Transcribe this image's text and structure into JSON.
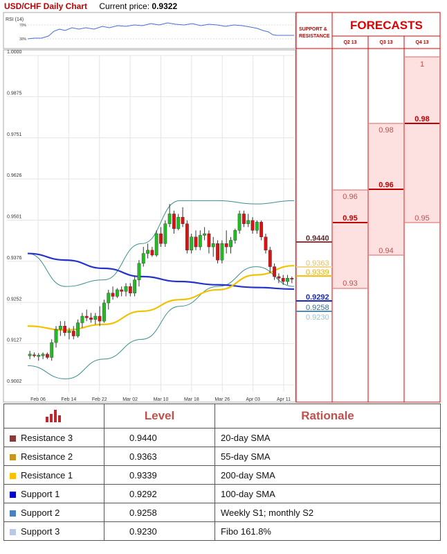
{
  "header": {
    "pair_title": "USD/CHF Daily Chart",
    "price_label": "Current price:",
    "price_value": "0.9322"
  },
  "rsi": {
    "label": "RSI (14)",
    "level_hi": "70%",
    "level_lo": "30%"
  },
  "forecasts": {
    "title": "FORECASTS",
    "sr_header": "SUPPORT & RESISTANCE",
    "columns": [
      "Q2 13",
      "Q3 13",
      "Q4 13"
    ],
    "q2": {
      "range_hi": "0.96",
      "point": "0.95",
      "range_lo": "0.93"
    },
    "q3": {
      "range_hi": "0.98",
      "point": "0.96",
      "range_lo": "0.94"
    },
    "q4": {
      "range_hi": "1",
      "point": "0.98",
      "range_lo": "0.95"
    },
    "sr_labels": {
      "r3": "0.9440",
      "r2": "0.9363",
      "r1": "0.9339",
      "s1": "0.9292",
      "s2": "0.9258",
      "s3": "0.9230"
    }
  },
  "chart_data": {
    "type": "candlestick",
    "title": "USD/CHF Daily Chart",
    "x_tick_labels": [
      "Feb 06",
      "Feb 14",
      "Feb 22",
      "Mar 02",
      "Mar 10",
      "Mar 18",
      "Mar 26",
      "Apr 03",
      "Apr 11"
    ],
    "y_tick_labels": [
      "1.0000",
      "0.9875",
      "0.9751",
      "0.9626",
      "0.9501",
      "0.9376",
      "0.9252",
      "0.9127",
      "0.9002"
    ],
    "ylim": [
      0.9002,
      1.0
    ],
    "grid": true,
    "candles": [
      [
        0.909,
        0.9105,
        0.908,
        0.9095
      ],
      [
        0.9093,
        0.91,
        0.9085,
        0.909
      ],
      [
        0.9088,
        0.9098,
        0.9075,
        0.9092
      ],
      [
        0.909,
        0.91,
        0.908,
        0.9095
      ],
      [
        0.9095,
        0.91,
        0.908,
        0.9085
      ],
      [
        0.9085,
        0.914,
        0.9075,
        0.913
      ],
      [
        0.913,
        0.918,
        0.9115,
        0.917
      ],
      [
        0.917,
        0.9195,
        0.915,
        0.918
      ],
      [
        0.918,
        0.9195,
        0.915,
        0.916
      ],
      [
        0.916,
        0.9175,
        0.914,
        0.9165
      ],
      [
        0.9165,
        0.918,
        0.914,
        0.915
      ],
      [
        0.915,
        0.92,
        0.9145,
        0.919
      ],
      [
        0.919,
        0.922,
        0.9175,
        0.921
      ],
      [
        0.921,
        0.923,
        0.9195,
        0.9205
      ],
      [
        0.9205,
        0.922,
        0.919,
        0.92
      ],
      [
        0.92,
        0.922,
        0.9185,
        0.921
      ],
      [
        0.921,
        0.924,
        0.918,
        0.9195
      ],
      [
        0.9195,
        0.926,
        0.919,
        0.925
      ],
      [
        0.925,
        0.929,
        0.923,
        0.928
      ],
      [
        0.928,
        0.93,
        0.926,
        0.927
      ],
      [
        0.927,
        0.9295,
        0.9265,
        0.929
      ],
      [
        0.929,
        0.93,
        0.927,
        0.9285
      ],
      [
        0.9285,
        0.931,
        0.927,
        0.93
      ],
      [
        0.93,
        0.931,
        0.927,
        0.928
      ],
      [
        0.928,
        0.933,
        0.927,
        0.932
      ],
      [
        0.932,
        0.938,
        0.93,
        0.937
      ],
      [
        0.937,
        0.942,
        0.936,
        0.94
      ],
      [
        0.94,
        0.943,
        0.9385,
        0.941
      ],
      [
        0.941,
        0.942,
        0.939,
        0.9395
      ],
      [
        0.9395,
        0.947,
        0.939,
        0.946
      ],
      [
        0.946,
        0.948,
        0.942,
        0.943
      ],
      [
        0.943,
        0.95,
        0.942,
        0.949
      ],
      [
        0.949,
        0.955,
        0.948,
        0.952
      ],
      [
        0.952,
        0.953,
        0.946,
        0.9475
      ],
      [
        0.9475,
        0.952,
        0.947,
        0.951
      ],
      [
        0.951,
        0.954,
        0.948,
        0.949
      ],
      [
        0.949,
        0.95,
        0.94,
        0.941
      ],
      [
        0.941,
        0.946,
        0.94,
        0.945
      ],
      [
        0.945,
        0.947,
        0.941,
        0.942
      ],
      [
        0.942,
        0.947,
        0.941,
        0.9455
      ],
      [
        0.9455,
        0.948,
        0.944,
        0.946
      ],
      [
        0.946,
        0.947,
        0.94,
        0.942
      ],
      [
        0.942,
        0.945,
        0.939,
        0.943
      ],
      [
        0.943,
        0.944,
        0.937,
        0.938
      ],
      [
        0.938,
        0.944,
        0.937,
        0.943
      ],
      [
        0.943,
        0.947,
        0.94,
        0.942
      ],
      [
        0.942,
        0.945,
        0.94,
        0.944
      ],
      [
        0.944,
        0.9475,
        0.943,
        0.947
      ],
      [
        0.947,
        0.953,
        0.946,
        0.952
      ],
      [
        0.952,
        0.953,
        0.948,
        0.949
      ],
      [
        0.949,
        0.952,
        0.948,
        0.95
      ],
      [
        0.95,
        0.951,
        0.946,
        0.947
      ],
      [
        0.947,
        0.95,
        0.946,
        0.9495
      ],
      [
        0.9495,
        0.95,
        0.944,
        0.945
      ],
      [
        0.945,
        0.946,
        0.94,
        0.941
      ],
      [
        0.941,
        0.942,
        0.934,
        0.936
      ],
      [
        0.936,
        0.937,
        0.932,
        0.933
      ],
      [
        0.933,
        0.934,
        0.931,
        0.9325
      ],
      [
        0.9325,
        0.9335,
        0.9305,
        0.9315
      ],
      [
        0.9315,
        0.9335,
        0.9305,
        0.9325
      ],
      [
        0.9325,
        0.933,
        0.931,
        0.9322
      ]
    ],
    "series": [
      {
        "name": "100-day SMA",
        "color": "#2433c8",
        "values": [
          0.94,
          0.938,
          0.9355,
          0.933,
          0.9315,
          0.9305,
          0.9297,
          0.9292
        ]
      },
      {
        "name": "55-day SMA",
        "color": "#f2c200",
        "values": [
          0.918,
          0.9168,
          0.9185,
          0.9225,
          0.926,
          0.929,
          0.9335,
          0.9363
        ]
      },
      {
        "name": "Bollinger upper",
        "color": "#3a8f8f",
        "values": [
          0.94,
          0.93,
          0.932,
          0.943,
          0.956,
          0.956,
          0.955,
          0.956
        ]
      },
      {
        "name": "Bollinger lower",
        "color": "#3a8f8f",
        "values": [
          0.906,
          0.902,
          0.908,
          0.914,
          0.924,
          0.93,
          0.936,
          0.93
        ]
      }
    ]
  },
  "levels_table": {
    "col_level": "Level",
    "col_rationale": "Rationale",
    "rows": [
      {
        "name": "Resistance 3",
        "level": "0.9440",
        "rationale": "20-day SMA",
        "color": "#8b3a3a"
      },
      {
        "name": "Resistance 2",
        "level": "0.9363",
        "rationale": "55-day SMA",
        "color": "#c8961e"
      },
      {
        "name": "Resistance 1",
        "level": "0.9339",
        "rationale": "200-day SMA",
        "color": "#ffc000"
      },
      {
        "name": "Support 1",
        "level": "0.9292",
        "rationale": "100-day SMA",
        "color": "#0000cc"
      },
      {
        "name": "Support 2",
        "level": "0.9258",
        "rationale": "Weekly S1; monthly S2",
        "color": "#4a80c0"
      },
      {
        "name": "Support 3",
        "level": "0.9230",
        "rationale": "Fibo 161.8%",
        "color": "#b8c8e8"
      }
    ]
  }
}
